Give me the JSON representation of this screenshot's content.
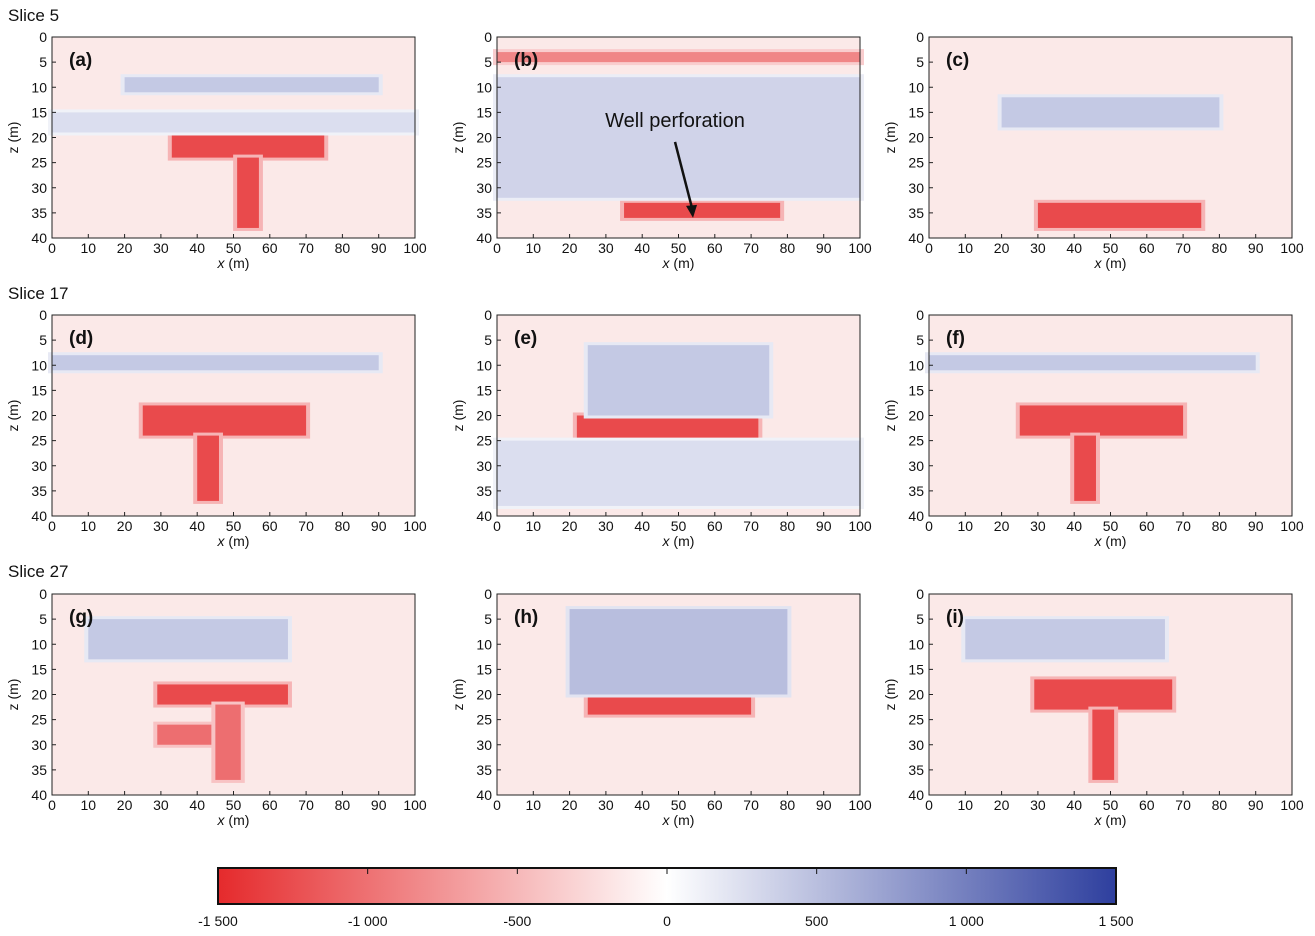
{
  "slices": [
    {
      "label": "Slice 5"
    },
    {
      "label": "Slice 17"
    },
    {
      "label": "Slice 27"
    }
  ],
  "colors": {
    "negative": "#e52a2c",
    "zero": "#ffffff",
    "positive": "#2e3f9e",
    "background_tint": "#fbe9e8"
  },
  "chart_data": [
    {
      "type": "heatmap",
      "panel": "(a)",
      "xlabel": "x (m)",
      "ylabel": "z (m)",
      "xlim": [
        0,
        100
      ],
      "ylim": [
        40,
        0
      ],
      "xticks": [
        0,
        10,
        20,
        30,
        40,
        50,
        60,
        70,
        80,
        90,
        100
      ],
      "yticks": [
        0,
        5,
        10,
        15,
        20,
        25,
        30,
        35,
        40
      ],
      "features": [
        {
          "value": -1500,
          "x": [
            33,
            75
          ],
          "z": [
            19,
            24
          ]
        },
        {
          "value": -1500,
          "x": [
            51,
            57
          ],
          "z": [
            24,
            38
          ]
        },
        {
          "value": 500,
          "x": [
            20,
            90
          ],
          "z": [
            8,
            11
          ]
        },
        {
          "value": 300,
          "x": [
            0,
            100
          ],
          "z": [
            15,
            19
          ]
        }
      ]
    },
    {
      "type": "heatmap",
      "panel": "(b)",
      "xlabel": "x (m)",
      "ylabel": "z (m)",
      "xlim": [
        0,
        100
      ],
      "ylim": [
        40,
        0
      ],
      "xticks": [
        0,
        10,
        20,
        30,
        40,
        50,
        60,
        70,
        80,
        90,
        100
      ],
      "yticks": [
        0,
        5,
        10,
        15,
        20,
        25,
        30,
        35,
        40
      ],
      "annotation": {
        "text": "Well perforation",
        "target_x": 54,
        "target_z": 36
      },
      "features": [
        {
          "value": -1000,
          "x": [
            0,
            100
          ],
          "z": [
            3,
            5
          ]
        },
        {
          "value": -1500,
          "x": [
            35,
            78
          ],
          "z": [
            33,
            36
          ]
        },
        {
          "value": 400,
          "x": [
            0,
            100
          ],
          "z": [
            8,
            32
          ]
        }
      ]
    },
    {
      "type": "heatmap",
      "panel": "(c)",
      "xlabel": "x (m)",
      "ylabel": "z (m)",
      "xlim": [
        0,
        100
      ],
      "ylim": [
        40,
        0
      ],
      "xticks": [
        0,
        10,
        20,
        30,
        40,
        50,
        60,
        70,
        80,
        90,
        100
      ],
      "yticks": [
        0,
        5,
        10,
        15,
        20,
        25,
        30,
        35,
        40
      ],
      "features": [
        {
          "value": -1500,
          "x": [
            30,
            75
          ],
          "z": [
            33,
            38
          ]
        },
        {
          "value": 500,
          "x": [
            20,
            80
          ],
          "z": [
            12,
            18
          ]
        }
      ]
    },
    {
      "type": "heatmap",
      "panel": "(d)",
      "xlabel": "x (m)",
      "ylabel": "z (m)",
      "xlim": [
        0,
        100
      ],
      "ylim": [
        40,
        0
      ],
      "xticks": [
        0,
        10,
        20,
        30,
        40,
        50,
        60,
        70,
        80,
        90,
        100
      ],
      "yticks": [
        0,
        5,
        10,
        15,
        20,
        25,
        30,
        35,
        40
      ],
      "features": [
        {
          "value": -1500,
          "x": [
            25,
            70
          ],
          "z": [
            18,
            24
          ]
        },
        {
          "value": -1500,
          "x": [
            40,
            46
          ],
          "z": [
            24,
            37
          ]
        },
        {
          "value": 500,
          "x": [
            0,
            90
          ],
          "z": [
            8,
            11
          ]
        }
      ]
    },
    {
      "type": "heatmap",
      "panel": "(e)",
      "xlabel": "x (m)",
      "ylabel": "z (m)",
      "xlim": [
        0,
        100
      ],
      "ylim": [
        40,
        0
      ],
      "xticks": [
        0,
        10,
        20,
        30,
        40,
        50,
        60,
        70,
        80,
        90,
        100
      ],
      "yticks": [
        0,
        5,
        10,
        15,
        20,
        25,
        30,
        35,
        40
      ],
      "features": [
        {
          "value": -1500,
          "x": [
            22,
            72
          ],
          "z": [
            20,
            25
          ]
        },
        {
          "value": 500,
          "x": [
            25,
            75
          ],
          "z": [
            6,
            20
          ]
        },
        {
          "value": 300,
          "x": [
            0,
            100
          ],
          "z": [
            25,
            38
          ]
        }
      ]
    },
    {
      "type": "heatmap",
      "panel": "(f)",
      "xlabel": "x (m)",
      "ylabel": "z (m)",
      "xlim": [
        0,
        100
      ],
      "ylim": [
        40,
        0
      ],
      "xticks": [
        0,
        10,
        20,
        30,
        40,
        50,
        60,
        70,
        80,
        90,
        100
      ],
      "yticks": [
        0,
        5,
        10,
        15,
        20,
        25,
        30,
        35,
        40
      ],
      "features": [
        {
          "value": -1500,
          "x": [
            25,
            70
          ],
          "z": [
            18,
            24
          ]
        },
        {
          "value": -1500,
          "x": [
            40,
            46
          ],
          "z": [
            24,
            37
          ]
        },
        {
          "value": 500,
          "x": [
            0,
            90
          ],
          "z": [
            8,
            11
          ]
        }
      ]
    },
    {
      "type": "heatmap",
      "panel": "(g)",
      "xlabel": "x (m)",
      "ylabel": "z (m)",
      "xlim": [
        0,
        100
      ],
      "ylim": [
        40,
        0
      ],
      "xticks": [
        0,
        10,
        20,
        30,
        40,
        50,
        60,
        70,
        80,
        90,
        100
      ],
      "yticks": [
        0,
        5,
        10,
        15,
        20,
        25,
        30,
        35,
        40
      ],
      "features": [
        {
          "value": -1500,
          "x": [
            29,
            65
          ],
          "z": [
            18,
            22
          ]
        },
        {
          "value": -1200,
          "x": [
            29,
            50
          ],
          "z": [
            26,
            30
          ]
        },
        {
          "value": -1200,
          "x": [
            45,
            52
          ],
          "z": [
            22,
            37
          ]
        },
        {
          "value": 500,
          "x": [
            10,
            65
          ],
          "z": [
            5,
            13
          ]
        }
      ]
    },
    {
      "type": "heatmap",
      "panel": "(h)",
      "xlabel": "x (m)",
      "ylabel": "z (m)",
      "xlim": [
        0,
        100
      ],
      "ylim": [
        40,
        0
      ],
      "xticks": [
        0,
        10,
        20,
        30,
        40,
        50,
        60,
        70,
        80,
        90,
        100
      ],
      "yticks": [
        0,
        5,
        10,
        15,
        20,
        25,
        30,
        35,
        40
      ],
      "features": [
        {
          "value": -1500,
          "x": [
            25,
            70
          ],
          "z": [
            19,
            24
          ]
        },
        {
          "value": 600,
          "x": [
            20,
            80
          ],
          "z": [
            3,
            20
          ]
        }
      ]
    },
    {
      "type": "heatmap",
      "panel": "(i)",
      "xlabel": "x (m)",
      "ylabel": "z (m)",
      "xlim": [
        0,
        100
      ],
      "ylim": [
        40,
        0
      ],
      "xticks": [
        0,
        10,
        20,
        30,
        40,
        50,
        60,
        70,
        80,
        90,
        100
      ],
      "yticks": [
        0,
        5,
        10,
        15,
        20,
        25,
        30,
        35,
        40
      ],
      "features": [
        {
          "value": -1500,
          "x": [
            29,
            67
          ],
          "z": [
            17,
            23
          ]
        },
        {
          "value": -1500,
          "x": [
            45,
            51
          ],
          "z": [
            23,
            37
          ]
        },
        {
          "value": 500,
          "x": [
            10,
            65
          ],
          "z": [
            5,
            13
          ]
        }
      ]
    },
    {
      "type": "colorbar",
      "min": -1500,
      "max": 1500,
      "tick_values": [
        -1500,
        -1000,
        -500,
        0,
        500,
        1000,
        1500
      ],
      "tick_labels": [
        "-1 500",
        "-1 000",
        "-500",
        "0",
        "500",
        "1 000",
        "1 500"
      ]
    }
  ]
}
